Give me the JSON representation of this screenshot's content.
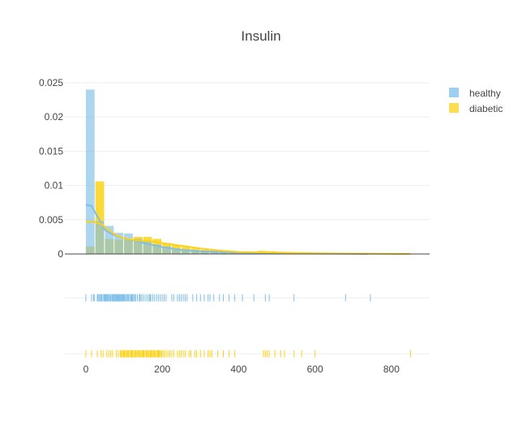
{
  "chart_data": {
    "type": "histogram-distplot",
    "title": "Insulin",
    "xlabel": "",
    "ylabel": "",
    "xlim": [
      -55,
      900
    ],
    "ylim": [
      0,
      0.025
    ],
    "x_ticks": [
      0,
      200,
      400,
      600,
      800
    ],
    "x_tick_labels": [
      "0",
      "200",
      "400",
      "600",
      "800"
    ],
    "y_ticks": [
      0,
      0.005,
      0.01,
      0.015,
      0.02,
      0.025
    ],
    "y_tick_labels": [
      "0",
      "0.005",
      "0.01",
      "0.015",
      "0.02",
      "0.025"
    ],
    "grid": true,
    "legend_position": "top-right",
    "series": [
      {
        "name": "healthy",
        "color": "#7fbfe8",
        "histogram": {
          "bin_edges": [
            0,
            25,
            50,
            75,
            100,
            125,
            150,
            175,
            200,
            225,
            250,
            275,
            300,
            325,
            350,
            375,
            400,
            425,
            450,
            475,
            500,
            525,
            550,
            575,
            600,
            625,
            650,
            675,
            700,
            725,
            750
          ],
          "density": [
            0.024,
            0.0048,
            0.0041,
            0.0031,
            0.003,
            0.0022,
            0.0019,
            0.0014,
            0.0011,
            0.0008,
            0.0006,
            0.0005,
            0.0004,
            0.0003,
            0.0002,
            0.00015,
            0.00012,
            0.0001,
            8e-05,
            6e-05,
            6e-05,
            4e-05,
            4e-05,
            3e-05,
            3e-05,
            2e-05,
            2e-05,
            2e-05,
            2e-05,
            1e-05
          ]
        },
        "kde": {
          "x": [
            0,
            15,
            30,
            50,
            75,
            100,
            130,
            160,
            200,
            250,
            300,
            350,
            400,
            450,
            500,
            550,
            600,
            650,
            700,
            740
          ],
          "y": [
            0.0072,
            0.007,
            0.0055,
            0.0035,
            0.0027,
            0.0023,
            0.0019,
            0.0015,
            0.001,
            0.0006,
            0.0004,
            0.0003,
            0.0002,
            0.00015,
            0.0001,
            8e-05,
            6e-05,
            4e-05,
            3e-05,
            2e-05
          ]
        },
        "rug": [
          0,
          15,
          20,
          22,
          30,
          32,
          35,
          38,
          40,
          42,
          45,
          48,
          50,
          52,
          54,
          56,
          58,
          60,
          63,
          65,
          68,
          70,
          72,
          74,
          76,
          78,
          80,
          82,
          84,
          86,
          88,
          90,
          92,
          94,
          96,
          98,
          100,
          102,
          105,
          108,
          110,
          112,
          115,
          118,
          120,
          122,
          125,
          128,
          130,
          135,
          140,
          142,
          145,
          150,
          155,
          160,
          165,
          168,
          170,
          175,
          180,
          185,
          190,
          195,
          200,
          205,
          210,
          225,
          230,
          240,
          245,
          250,
          255,
          260,
          265,
          280,
          290,
          300,
          310,
          320,
          325,
          335,
          350,
          360,
          375,
          390,
          410,
          440,
          470,
          480,
          545,
          680,
          745
        ]
      },
      {
        "name": "diabetic",
        "color": "#fbd217",
        "histogram": {
          "bin_edges": [
            0,
            25,
            50,
            75,
            100,
            125,
            150,
            175,
            200,
            225,
            250,
            275,
            300,
            325,
            350,
            375,
            400,
            425,
            450,
            475,
            500,
            525,
            550,
            575,
            600,
            625,
            650,
            675,
            700,
            725,
            750,
            775,
            800,
            825,
            850
          ],
          "density": [
            0.0011,
            0.0106,
            0.0022,
            0.0021,
            0.0022,
            0.0025,
            0.0025,
            0.0022,
            0.0016,
            0.0013,
            0.001,
            0.0008,
            0.0006,
            0.0005,
            0.0004,
            0.0003,
            0.00025,
            0.0002,
            0.00045,
            0.0004,
            0.00025,
            0.00022,
            0.0002,
            0.00015,
            0.00012,
            0.0001,
            8e-05,
            6e-05,
            5e-05,
            4e-05,
            4e-05,
            3e-05,
            3e-05,
            2e-05
          ]
        },
        "kde": {
          "x": [
            0,
            20,
            40,
            60,
            80,
            100,
            130,
            160,
            200,
            250,
            300,
            350,
            400,
            450,
            500,
            550,
            600,
            650,
            700,
            750,
            800,
            850
          ],
          "y": [
            0.0047,
            0.0047,
            0.0044,
            0.0035,
            0.0027,
            0.0023,
            0.002,
            0.0019,
            0.0016,
            0.0012,
            0.0008,
            0.0005,
            0.0003,
            0.00025,
            0.0002,
            0.00015,
            0.0001,
            8e-05,
            6e-05,
            4e-05,
            2e-05,
            1e-05
          ]
        },
        "rug": [
          0,
          15,
          30,
          40,
          45,
          55,
          60,
          65,
          70,
          80,
          85,
          90,
          92,
          95,
          98,
          100,
          102,
          105,
          108,
          110,
          112,
          115,
          118,
          120,
          122,
          125,
          128,
          130,
          132,
          135,
          138,
          140,
          142,
          145,
          148,
          150,
          152,
          155,
          158,
          160,
          162,
          165,
          168,
          170,
          172,
          175,
          178,
          180,
          182,
          185,
          188,
          190,
          192,
          195,
          198,
          200,
          205,
          210,
          215,
          220,
          225,
          230,
          240,
          245,
          250,
          255,
          260,
          270,
          275,
          285,
          290,
          300,
          310,
          320,
          325,
          330,
          345,
          360,
          375,
          390,
          465,
          470,
          475,
          480,
          495,
          510,
          520,
          545,
          565,
          600,
          850
        ]
      }
    ]
  }
}
